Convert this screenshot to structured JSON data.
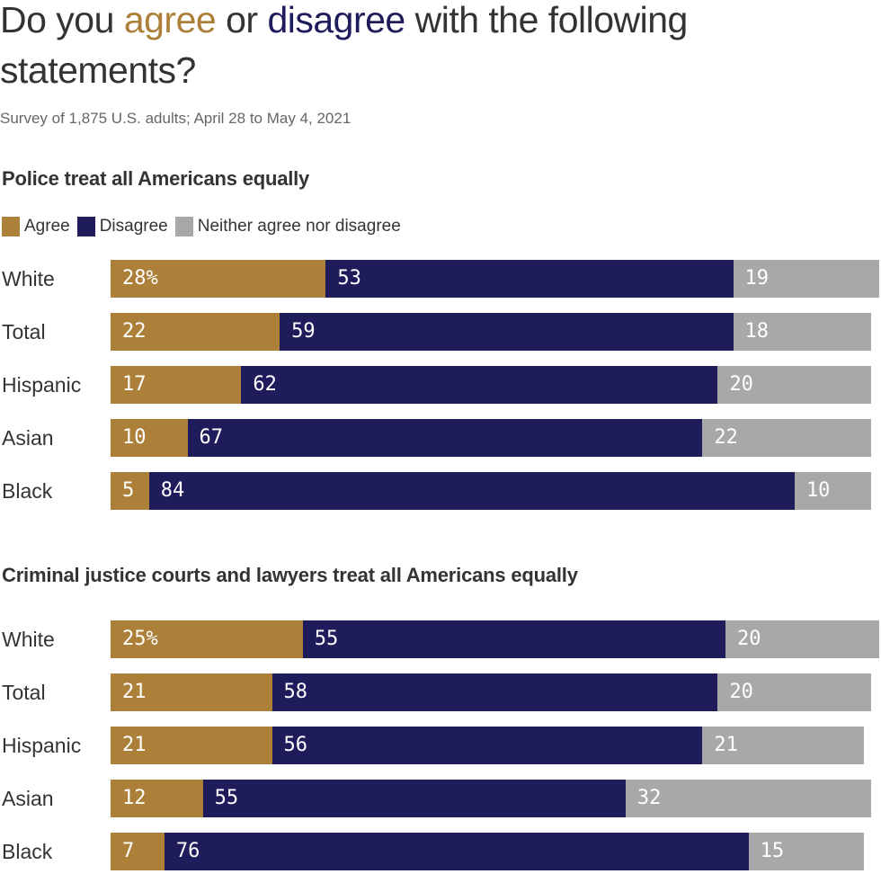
{
  "title": {
    "part1": "Do you ",
    "agree": "agree",
    "part2": " or ",
    "disagree": "disagree",
    "part3": " with the following statements?"
  },
  "subtitle": "Survey of 1,875 U.S. adults; April 28 to May 4, 2021",
  "legend": [
    {
      "label": "Agree",
      "color": "#AD803A"
    },
    {
      "label": "Disagree",
      "color": "#1E1C5B"
    },
    {
      "label": "Neither agree nor disagree",
      "color": "#A8A8A8"
    }
  ],
  "colors": {
    "agree": "#AD803A",
    "disagree": "#1E1C5B",
    "neither": "#A8A8A8"
  },
  "chart_data": [
    {
      "type": "bar",
      "orientation": "horizontal",
      "stacked": true,
      "title": "Police treat all Americans equally",
      "categories": [
        "White",
        "Total",
        "Hispanic",
        "Asian",
        "Black"
      ],
      "series": [
        {
          "name": "Agree",
          "values": [
            28,
            22,
            17,
            10,
            5
          ]
        },
        {
          "name": "Disagree",
          "values": [
            53,
            59,
            62,
            67,
            84
          ]
        },
        {
          "name": "Neither agree nor disagree",
          "values": [
            19,
            18,
            20,
            22,
            10
          ]
        }
      ],
      "unit_suffix_first": "%",
      "xlim": [
        0,
        100
      ],
      "grid": false,
      "legend": "top-left"
    },
    {
      "type": "bar",
      "orientation": "horizontal",
      "stacked": true,
      "title": "Criminal justice courts and lawyers treat all Americans equally",
      "categories": [
        "White",
        "Total",
        "Hispanic",
        "Asian",
        "Black"
      ],
      "series": [
        {
          "name": "Agree",
          "values": [
            25,
            21,
            21,
            12,
            7
          ]
        },
        {
          "name": "Disagree",
          "values": [
            55,
            58,
            56,
            55,
            76
          ]
        },
        {
          "name": "Neither agree nor disagree",
          "values": [
            20,
            20,
            21,
            32,
            15
          ]
        }
      ],
      "unit_suffix_first": "%",
      "xlim": [
        0,
        100
      ],
      "grid": false
    }
  ]
}
